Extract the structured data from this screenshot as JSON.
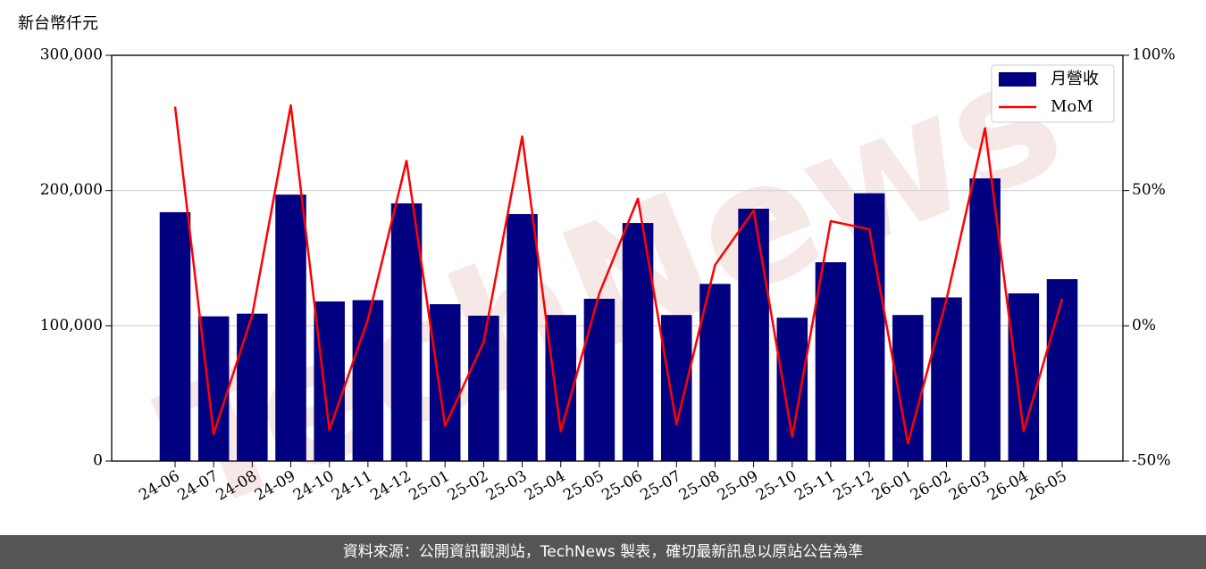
{
  "chart_data": {
    "type": "bar",
    "ylabel": "新台幣仟元",
    "watermark": "TechNews",
    "categories": [
      "24-06",
      "24-07",
      "24-08",
      "24-09",
      "24-10",
      "24-11",
      "24-12",
      "25-01",
      "25-02",
      "25-03",
      "25-04",
      "25-05",
      "25-06",
      "25-07",
      "25-08",
      "25-09",
      "25-10",
      "25-11",
      "25-12",
      "26-01",
      "26-02",
      "26-03",
      "26-04",
      "26-05"
    ],
    "series": [
      {
        "name": "月營收",
        "type": "bar",
        "color": "#000080",
        "values": [
          184000,
          107000,
          109000,
          197000,
          118000,
          119000,
          190500,
          116000,
          107500,
          182600,
          108000,
          120000,
          176000,
          108000,
          131000,
          186600,
          106000,
          147000,
          198000,
          108000,
          121000,
          209000,
          124000,
          134500
        ]
      },
      {
        "name": "MoM",
        "type": "line",
        "axis": "y2",
        "color": "#ff0000",
        "values": [
          81,
          -40,
          4,
          81.5,
          -38.5,
          2.4,
          61,
          -37,
          -6,
          70,
          -39,
          12,
          47,
          -36.5,
          22.5,
          42.6,
          -41,
          38.7,
          35.7,
          -43.5,
          9.7,
          73,
          -39,
          10
        ]
      }
    ],
    "ylim": [
      0,
      300000
    ],
    "yticks": [
      0,
      {
        "value": 100000,
        "label": "100,000"
      },
      {
        "value": 200000,
        "label": "200,000"
      },
      {
        "value": 300000,
        "label": "300,000"
      }
    ],
    "y2lim": [
      -50,
      100
    ],
    "y2ticks": [
      {
        "value": -50,
        "label": "-50%"
      },
      {
        "value": 0,
        "label": "0%"
      },
      {
        "value": 50,
        "label": "50%"
      },
      {
        "value": 100,
        "label": "100%"
      }
    ],
    "grid": true,
    "legend": "upper right"
  },
  "footer": "資料來源：公開資訊觀測站，TechNews 製表，確切最新訊息以原站公告為準"
}
